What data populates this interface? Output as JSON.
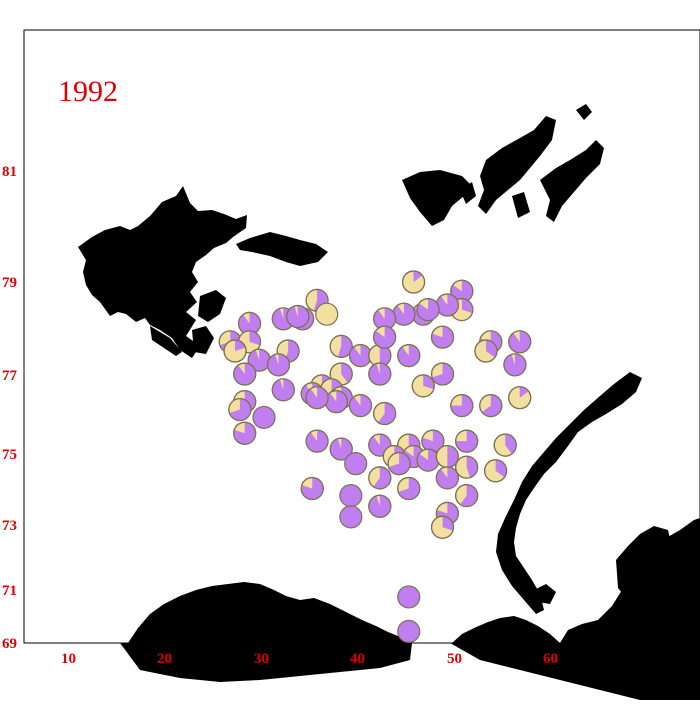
{
  "map": {
    "year_label": "1992",
    "colors": {
      "purple": "#c07ef0",
      "yellow": "#f3e0a0",
      "land": "#000000",
      "axis_text": "#e00000"
    },
    "y_ticks": [
      "81",
      "79",
      "77",
      "75",
      "73",
      "71",
      "69"
    ],
    "x_ticks": [
      "10",
      "20",
      "30",
      "40",
      "50",
      "60"
    ],
    "stations": [
      {
        "lon": 35.5,
        "lat": 78.6,
        "purple": 0.55
      },
      {
        "lon": 36.5,
        "lat": 78.3,
        "purple": 0.0
      },
      {
        "lon": 45.5,
        "lat": 79.0,
        "purple": 0.15
      },
      {
        "lon": 50.5,
        "lat": 78.8,
        "purple": 0.85
      },
      {
        "lon": 50.5,
        "lat": 78.4,
        "purple": 0.3
      },
      {
        "lon": 49.0,
        "lat": 78.5,
        "purple": 0.9
      },
      {
        "lon": 46.5,
        "lat": 78.3,
        "purple": 0.85
      },
      {
        "lon": 44.5,
        "lat": 78.3,
        "purple": 0.9
      },
      {
        "lon": 42.5,
        "lat": 78.2,
        "purple": 0.9
      },
      {
        "lon": 28.5,
        "lat": 78.1,
        "purple": 0.9
      },
      {
        "lon": 32.0,
        "lat": 78.2,
        "purple": 0.95
      },
      {
        "lon": 34.0,
        "lat": 78.2,
        "purple": 0.9
      },
      {
        "lon": 26.5,
        "lat": 77.7,
        "purple": 0.7
      },
      {
        "lon": 28.5,
        "lat": 77.7,
        "purple": 0.3
      },
      {
        "lon": 27.0,
        "lat": 77.5,
        "purple": 0.2
      },
      {
        "lon": 32.5,
        "lat": 77.5,
        "purple": 0.55
      },
      {
        "lon": 38.0,
        "lat": 77.6,
        "purple": 0.55
      },
      {
        "lon": 40.0,
        "lat": 77.4,
        "purple": 0.9
      },
      {
        "lon": 42.0,
        "lat": 77.4,
        "purple": 0.5
      },
      {
        "lon": 42.5,
        "lat": 77.8,
        "purple": 0.85
      },
      {
        "lon": 48.5,
        "lat": 77.8,
        "purple": 0.8
      },
      {
        "lon": 53.5,
        "lat": 77.7,
        "purple": 0.8
      },
      {
        "lon": 56.5,
        "lat": 77.7,
        "purple": 0.9
      },
      {
        "lon": 53.0,
        "lat": 77.5,
        "purple": 0.35
      },
      {
        "lon": 45.0,
        "lat": 77.4,
        "purple": 0.9
      },
      {
        "lon": 29.5,
        "lat": 77.3,
        "purple": 0.95
      },
      {
        "lon": 31.5,
        "lat": 77.2,
        "purple": 0.95
      },
      {
        "lon": 56.0,
        "lat": 77.2,
        "purple": 0.95
      },
      {
        "lon": 28.0,
        "lat": 77.0,
        "purple": 0.9
      },
      {
        "lon": 38.0,
        "lat": 77.0,
        "purple": 0.4
      },
      {
        "lon": 42.0,
        "lat": 77.0,
        "purple": 0.95
      },
      {
        "lon": 48.5,
        "lat": 77.0,
        "purple": 0.7
      },
      {
        "lon": 46.5,
        "lat": 76.7,
        "purple": 0.3
      },
      {
        "lon": 36.0,
        "lat": 76.7,
        "purple": 0.7
      },
      {
        "lon": 37.0,
        "lat": 76.6,
        "purple": 0.6
      },
      {
        "lon": 35.0,
        "lat": 76.5,
        "purple": 0.9
      },
      {
        "lon": 32.0,
        "lat": 76.6,
        "purple": 0.95
      },
      {
        "lon": 38.0,
        "lat": 76.4,
        "purple": 0.9
      },
      {
        "lon": 37.5,
        "lat": 76.3,
        "purple": 0.9
      },
      {
        "lon": 35.5,
        "lat": 76.4,
        "purple": 0.9
      },
      {
        "lon": 28.0,
        "lat": 76.3,
        "purple": 0.6
      },
      {
        "lon": 27.5,
        "lat": 76.1,
        "purple": 0.7
      },
      {
        "lon": 40.0,
        "lat": 76.2,
        "purple": 0.9
      },
      {
        "lon": 42.5,
        "lat": 76.0,
        "purple": 0.6
      },
      {
        "lon": 50.5,
        "lat": 76.2,
        "purple": 0.75
      },
      {
        "lon": 53.5,
        "lat": 76.2,
        "purple": 0.65
      },
      {
        "lon": 56.5,
        "lat": 76.4,
        "purple": 0.15
      },
      {
        "lon": 30.0,
        "lat": 75.9,
        "purple": 1.0
      },
      {
        "lon": 28.0,
        "lat": 75.5,
        "purple": 0.8
      },
      {
        "lon": 35.5,
        "lat": 75.3,
        "purple": 0.9
      },
      {
        "lon": 38.0,
        "lat": 75.1,
        "purple": 0.95
      },
      {
        "lon": 42.0,
        "lat": 75.2,
        "purple": 0.9
      },
      {
        "lon": 45.0,
        "lat": 75.2,
        "purple": 0.5
      },
      {
        "lon": 47.5,
        "lat": 75.3,
        "purple": 0.8
      },
      {
        "lon": 51.0,
        "lat": 75.3,
        "purple": 0.75
      },
      {
        "lon": 55.0,
        "lat": 75.2,
        "purple": 0.4
      },
      {
        "lon": 43.5,
        "lat": 74.9,
        "purple": 0.55
      },
      {
        "lon": 45.5,
        "lat": 74.9,
        "purple": 0.85
      },
      {
        "lon": 47.0,
        "lat": 74.8,
        "purple": 0.85
      },
      {
        "lon": 49.0,
        "lat": 74.9,
        "purple": 0.5
      },
      {
        "lon": 39.5,
        "lat": 74.7,
        "purple": 1.0
      },
      {
        "lon": 44.0,
        "lat": 74.7,
        "purple": 0.7
      },
      {
        "lon": 51.0,
        "lat": 74.6,
        "purple": 0.45
      },
      {
        "lon": 54.0,
        "lat": 74.5,
        "purple": 0.35
      },
      {
        "lon": 42.0,
        "lat": 74.3,
        "purple": 0.6
      },
      {
        "lon": 49.0,
        "lat": 74.3,
        "purple": 0.9
      },
      {
        "lon": 35.0,
        "lat": 74.0,
        "purple": 0.8
      },
      {
        "lon": 45.0,
        "lat": 74.0,
        "purple": 0.7
      },
      {
        "lon": 51.0,
        "lat": 73.8,
        "purple": 0.6
      },
      {
        "lon": 39.0,
        "lat": 73.8,
        "purple": 1.0
      },
      {
        "lon": 42.0,
        "lat": 73.5,
        "purple": 0.95
      },
      {
        "lon": 49.0,
        "lat": 73.3,
        "purple": 0.8
      },
      {
        "lon": 39.0,
        "lat": 73.2,
        "purple": 1.0
      },
      {
        "lon": 48.5,
        "lat": 72.9,
        "purple": 0.3
      },
      {
        "lon": 45.0,
        "lat": 70.7,
        "purple": 1.0
      },
      {
        "lon": 45.0,
        "lat": 69.4,
        "purple": 1.0
      },
      {
        "lon": 47.0,
        "lat": 78.4,
        "purple": 0.85
      },
      {
        "lon": 33.5,
        "lat": 78.25,
        "purple": 0.95
      }
    ]
  }
}
